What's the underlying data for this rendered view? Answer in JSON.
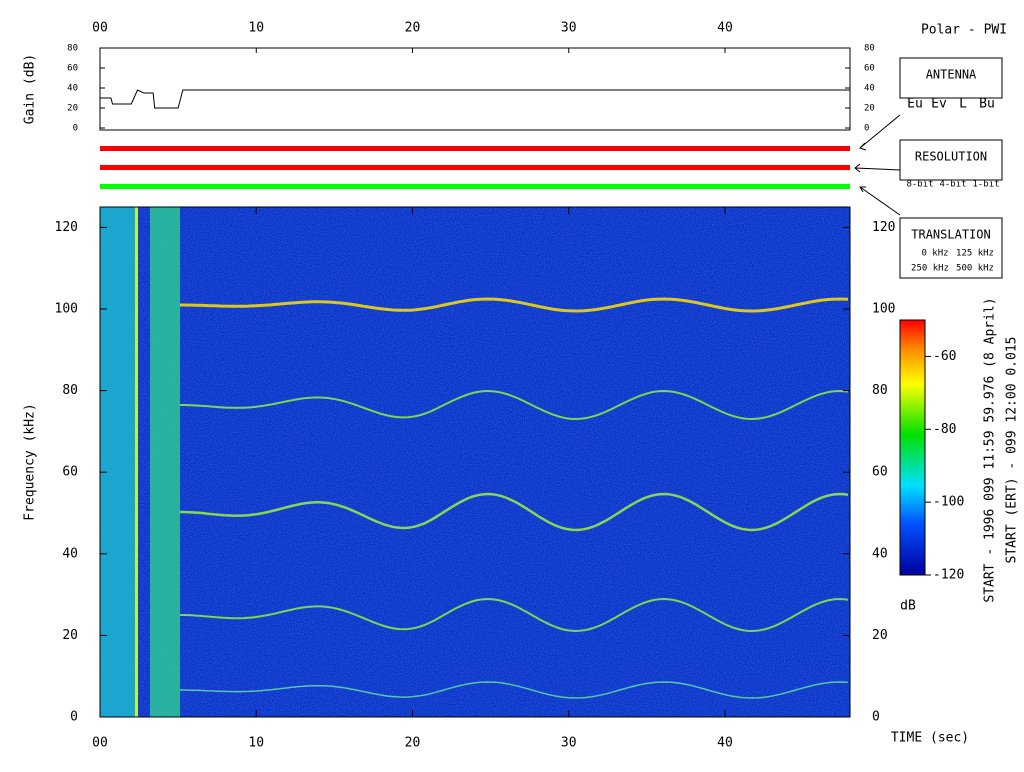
{
  "header": {
    "title": "Polar - PWI"
  },
  "chart_data": [
    {
      "type": "line",
      "y_label": "Gain (dB)",
      "x": [
        0,
        0.7,
        0.8,
        2.0,
        2.4,
        2.8,
        3.4,
        3.5,
        5.0,
        5.3,
        48
      ],
      "values": [
        30,
        30,
        24,
        24,
        38,
        35,
        35,
        20,
        20,
        38,
        38
      ],
      "color": "#000000",
      "xlim": [
        0,
        48
      ],
      "xticks": [
        {
          "value": 0,
          "label": "00"
        },
        10,
        20,
        30,
        40
      ],
      "ylim": [
        0,
        80
      ],
      "yticks": [
        0,
        20,
        40,
        60,
        80
      ]
    },
    {
      "type": "heatmap",
      "y_label": "Frequency (kHz)",
      "x_label": "TIME (sec)",
      "xlim": [
        0,
        48
      ],
      "xticks": [
        {
          "value": 0,
          "label": "00"
        },
        10,
        20,
        30,
        40
      ],
      "ylim": [
        0,
        125
      ],
      "yticks": [
        0,
        20,
        40,
        60,
        80,
        100,
        120
      ],
      "colorbar": {
        "label": "dB",
        "zlim": [
          -120,
          -50
        ],
        "ticks": [
          -120,
          -100,
          -80,
          -60
        ]
      }
    }
  ],
  "status_bars": [
    "#ff0000",
    "#ff0000",
    "#00ff00"
  ],
  "legend_boxes": {
    "antenna": {
      "title": "ANTENNA",
      "items": [
        {
          "text": "Eu",
          "color": "#e00000"
        },
        {
          "text": "Ev",
          "color": "#00c000"
        },
        {
          "text": "L",
          "color": "#0000c0"
        },
        {
          "text": "Bu",
          "color": "#0000c0"
        }
      ]
    },
    "resolution": {
      "title": "RESOLUTION",
      "items": [
        {
          "text": "8-bit",
          "color": "#e00000"
        },
        {
          "text": "4-bit",
          "color": "#00c000"
        },
        {
          "text": "1-bit",
          "color": "#0000c0"
        }
      ]
    },
    "translation": {
      "title": "TRANSLATION",
      "items": [
        {
          "text": "0 kHz",
          "color": "#e00000"
        },
        {
          "text": "125 kHz",
          "color": "#00c000"
        },
        {
          "text": "250 kHz",
          "color": "#0000c0"
        },
        {
          "text": "500 kHz",
          "color": "#000000"
        }
      ]
    }
  },
  "footer": {
    "start": "START - 1996 099 11:59 59.976 (8 April)",
    "start_ert": "START (ERT) - 099 12:00 0.015"
  }
}
